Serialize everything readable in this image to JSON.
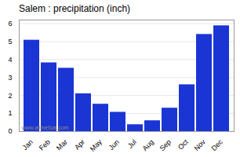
{
  "chart_data": {
    "type": "bar",
    "title": "Salem : precipitation (inch)",
    "categories": [
      "Jan",
      "Feb",
      "Mar",
      "Apr",
      "May",
      "Jun",
      "Jul",
      "Aug",
      "Sep",
      "Oct",
      "Nov",
      "Dec"
    ],
    "values": [
      5.08,
      3.82,
      3.52,
      2.1,
      1.52,
      1.07,
      0.38,
      0.6,
      1.3,
      2.6,
      5.4,
      5.88
    ],
    "color": "#1a35d4",
    "ylim": [
      0,
      6.2
    ],
    "yticks": [
      0,
      1,
      2,
      3,
      4,
      5,
      6
    ],
    "grid": true,
    "annotations": [
      "www.allmetsat.com"
    ]
  }
}
